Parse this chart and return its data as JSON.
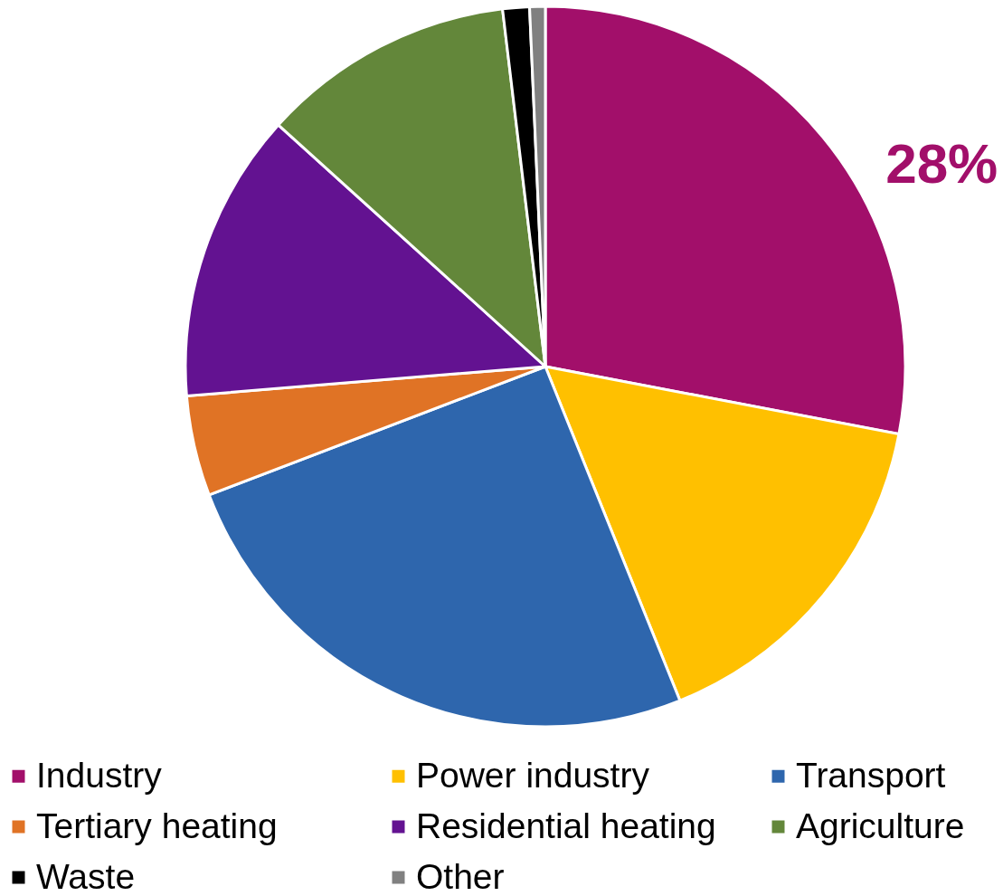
{
  "chart_data": {
    "type": "pie",
    "categories": [
      "Industry",
      "Power industry",
      "Transport",
      "Tertiary heating",
      "Residential heating",
      "Agriculture",
      "Waste",
      "Other"
    ],
    "values": [
      28,
      15.9,
      25.3,
      4.5,
      13.0,
      11.4,
      1.2,
      0.7
    ],
    "colors": [
      "#a20f6a",
      "#ffc000",
      "#2e66ad",
      "#e07325",
      "#631291",
      "#63873a",
      "#000000",
      "#808080"
    ],
    "value_labels": [
      "28%",
      null,
      null,
      null,
      null,
      null,
      null,
      null
    ],
    "legend": "bottom"
  }
}
